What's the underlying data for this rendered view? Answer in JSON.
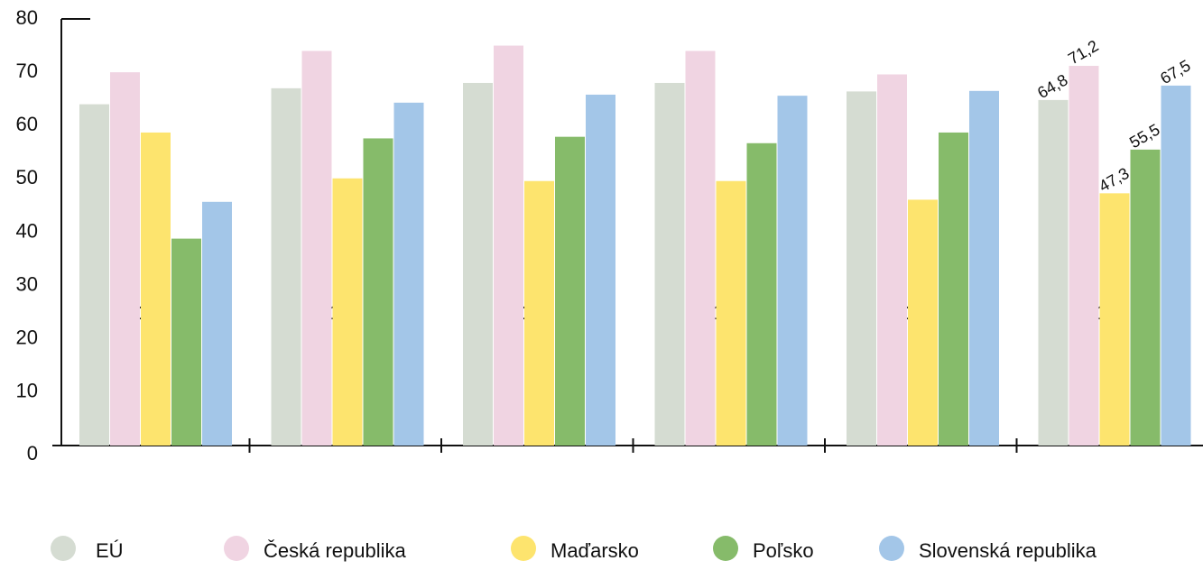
{
  "chart_data": {
    "type": "bar",
    "categories": [
      "2010",
      "2015",
      "2016",
      "2017",
      "2018",
      "2019"
    ],
    "series": [
      {
        "name": "EÚ",
        "color": "#d5dcd2",
        "values": [
          64,
          67,
          68,
          68,
          66.4,
          64.8
        ],
        "value_labels": [
          null,
          null,
          null,
          null,
          null,
          "64,8"
        ]
      },
      {
        "name": "Česká republika",
        "color": "#f0d4e2",
        "values": [
          70,
          74,
          75,
          74,
          69.6,
          71.2
        ],
        "value_labels": [
          null,
          null,
          null,
          null,
          null,
          "71,2"
        ]
      },
      {
        "name": "Maďarsko",
        "color": "#fde46e",
        "values": [
          58.7,
          50.1,
          49.6,
          49.6,
          46.1,
          47.3
        ],
        "value_labels": [
          null,
          null,
          null,
          null,
          null,
          "47,3"
        ]
      },
      {
        "name": "Poľsko",
        "color": "#86bb6a",
        "values": [
          38.8,
          57.6,
          57.9,
          56.7,
          58.7,
          55.5
        ],
        "value_labels": [
          null,
          null,
          null,
          null,
          null,
          "55,5"
        ]
      },
      {
        "name": "Slovenská republika",
        "color": "#a3c6e8",
        "values": [
          45.7,
          64.3,
          65.8,
          65.6,
          66.5,
          67.5
        ],
        "value_labels": [
          null,
          null,
          null,
          null,
          null,
          "67,5"
        ]
      }
    ],
    "ylim": [
      0,
      80
    ],
    "yticks": [
      0,
      10,
      20,
      30,
      40,
      50,
      60,
      70,
      80
    ]
  }
}
